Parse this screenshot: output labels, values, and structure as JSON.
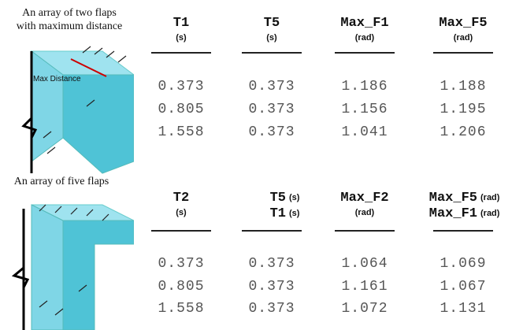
{
  "sections": [
    {
      "caption_lines": [
        "An array of two flaps",
        "with maximum distance"
      ],
      "image_label": "Max Distance",
      "headers": [
        {
          "parts": [
            {
              "name": "T1",
              "unit": "(s)"
            }
          ]
        },
        {
          "parts": [
            {
              "name": "T5",
              "unit": "(s)"
            }
          ]
        },
        {
          "parts": [
            {
              "name": "Max_F1",
              "unit": "(rad)"
            }
          ]
        },
        {
          "parts": [
            {
              "name": "Max_F5",
              "unit": "(rad)"
            }
          ]
        }
      ],
      "rows": [
        [
          "0.373",
          "0.373",
          "1.186",
          "1.188"
        ],
        [
          "0.805",
          "0.373",
          "1.156",
          "1.195"
        ],
        [
          "1.558",
          "0.373",
          "1.041",
          "1.206"
        ]
      ]
    },
    {
      "caption_lines": [
        "An array of five flaps"
      ],
      "headers": [
        {
          "parts": [
            {
              "name": "T2",
              "unit": "(s)"
            }
          ]
        },
        {
          "parts": [
            {
              "name": "T5",
              "unit": "(s)"
            },
            {
              "name": "T1",
              "unit": "(s)"
            }
          ]
        },
        {
          "parts": [
            {
              "name": "Max_F2",
              "unit": "(rad)"
            }
          ]
        },
        {
          "parts": [
            {
              "name": "Max_F5",
              "unit": "(rad)"
            },
            {
              "name": "Max_F1",
              "unit": "(rad)"
            }
          ]
        }
      ],
      "rows": [
        [
          "0.373",
          "0.373",
          "1.064",
          "1.069"
        ],
        [
          "0.805",
          "0.373",
          "1.161",
          "1.067"
        ],
        [
          "1.558",
          "0.373",
          "1.072",
          "1.131"
        ]
      ]
    }
  ]
}
